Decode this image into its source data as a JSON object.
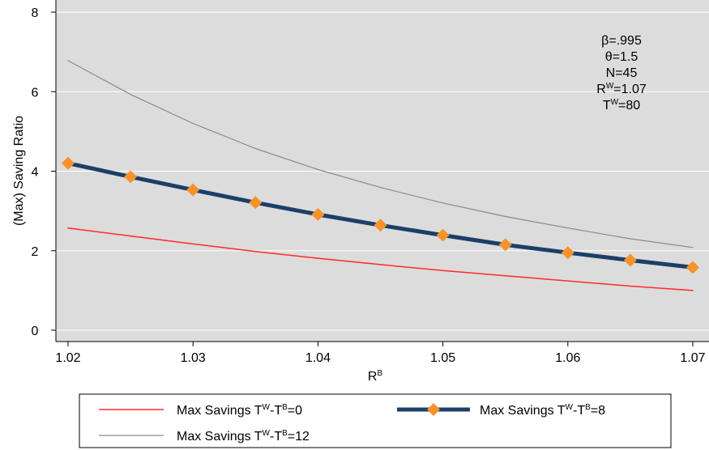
{
  "chart_data": {
    "type": "line",
    "title": "",
    "xlabel": {
      "base": "R",
      "sup": "B"
    },
    "ylabel": "(Max) Saving Ratio",
    "xlim": [
      1.02,
      1.07
    ],
    "ylim": [
      0,
      8
    ],
    "x_ticks": [
      "1.02",
      "1.03",
      "1.04",
      "1.05",
      "1.06",
      "1.07"
    ],
    "y_ticks": [
      "0",
      "2",
      "4",
      "6",
      "8"
    ],
    "x": [
      1.02,
      1.025,
      1.03,
      1.035,
      1.04,
      1.045,
      1.05,
      1.055,
      1.06,
      1.065,
      1.07
    ],
    "grid": "horizontal",
    "background": "#dcdcdc",
    "series": [
      {
        "name": {
          "prefix": "Max Savings T",
          "sup1": "W",
          "mid": "-T",
          "sup2": "B",
          "suffix": "=0"
        },
        "color": "#ff2a2a",
        "marker": "none",
        "values": [
          2.57,
          2.37,
          2.17,
          1.98,
          1.81,
          1.65,
          1.5,
          1.37,
          1.24,
          1.11,
          1.0
        ]
      },
      {
        "name": {
          "prefix": "Max Savings T",
          "sup1": "W",
          "mid": "-T",
          "sup2": "B",
          "suffix": "=8"
        },
        "color": "#1c3f66",
        "marker": "diamond",
        "marker_color": "#f7922a",
        "values": [
          4.2,
          3.86,
          3.53,
          3.21,
          2.91,
          2.64,
          2.39,
          2.15,
          1.95,
          1.76,
          1.58
        ]
      },
      {
        "name": {
          "prefix": "Max Savings T",
          "sup1": "W",
          "mid": "-T",
          "sup2": "B",
          "suffix": "=12"
        },
        "color": "#8a8a8a",
        "marker": "none",
        "values": [
          6.78,
          5.93,
          5.2,
          4.57,
          4.04,
          3.59,
          3.2,
          2.86,
          2.57,
          2.3,
          2.08
        ]
      }
    ],
    "annotations": [
      {
        "text": "β=.995"
      },
      {
        "text": "θ=1.5"
      },
      {
        "text": "N=45"
      },
      {
        "base": "R",
        "sup": "W",
        "rest": "=1.07"
      },
      {
        "base": "T",
        "sup": "W",
        "rest": "=80"
      }
    ],
    "legend_position": "bottom"
  }
}
